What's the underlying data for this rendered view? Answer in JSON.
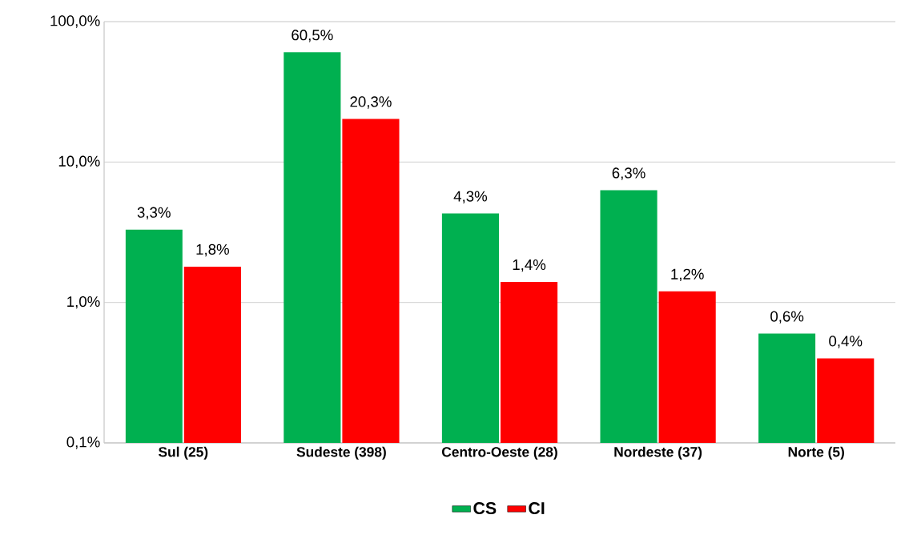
{
  "chart_data": {
    "type": "bar",
    "categories": [
      "Sul (25)",
      "Sudeste (398)",
      "Centro-Oeste (28)",
      "Nordeste (37)",
      "Norte (5)"
    ],
    "series": [
      {
        "name": "CS",
        "color": "#00b050",
        "values": [
          3.3,
          60.5,
          4.3,
          6.3,
          0.6
        ],
        "value_labels": [
          "3,3%",
          "60,5%",
          "4,3%",
          "6,3%",
          "0,6%"
        ]
      },
      {
        "name": "CI",
        "color": "#ff0000",
        "values": [
          1.8,
          20.3,
          1.4,
          1.2,
          0.4
        ],
        "value_labels": [
          "1,8%",
          "20,3%",
          "1,4%",
          "1,2%",
          "0,4%"
        ]
      }
    ],
    "log": "y",
    "ylim": [
      0.1,
      100
    ],
    "yticks": [
      {
        "value": 0.1,
        "label": "0,1%"
      },
      {
        "value": 1,
        "label": "1,0%"
      },
      {
        "value": 10,
        "label": "10,0%"
      },
      {
        "value": 100,
        "label": "100,0%"
      }
    ],
    "grid": "y",
    "legend": "bottom"
  }
}
